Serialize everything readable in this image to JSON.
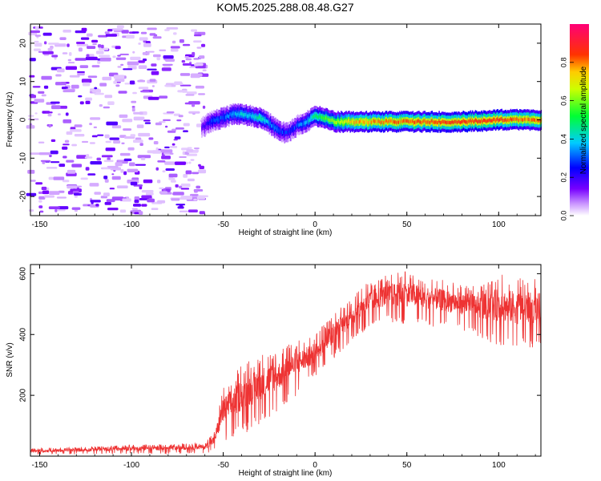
{
  "title": "KOM5.2025.288.08.48.G27",
  "chart_data": [
    {
      "type": "heatmap",
      "name": "spectrogram",
      "xlabel": "Height of straight line (km)",
      "ylabel": "Frequency (Hz)",
      "xlim": [
        -155,
        123
      ],
      "ylim": [
        -25,
        25
      ],
      "xticks": [
        -150,
        -100,
        -50,
        0,
        50,
        100
      ],
      "yticks": [
        -20,
        -10,
        0,
        10,
        20
      ],
      "colorbar": {
        "label": "Normalized spectral amplitude",
        "range": [
          0,
          1
        ],
        "ticks": [
          0.0,
          0.2,
          0.4,
          0.6,
          0.8
        ],
        "tick_labels": [
          "0.0",
          "0.2",
          "0.4",
          "0.6",
          "0.8"
        ],
        "colormap": "rainbow (white-violet-blue-cyan-green-yellow-orange-red-magenta)"
      },
      "noise_region_x": [
        -155,
        -60
      ],
      "noise_amplitude": [
        0.03,
        0.18
      ],
      "signal_trace": {
        "x": [
          -62,
          -55,
          -50,
          -45,
          -40,
          -35,
          -30,
          -25,
          -20,
          -15,
          -10,
          -5,
          0,
          5,
          10,
          20,
          40,
          60,
          80,
          100,
          110,
          123
        ],
        "frequency": [
          -2,
          0,
          0.5,
          1.5,
          1.5,
          1.0,
          0.5,
          -1.0,
          -3.0,
          -3.5,
          -1.5,
          -0.5,
          1.0,
          0.5,
          -0.5,
          -0.5,
          -0.5,
          -0.5,
          -0.5,
          0,
          0,
          0
        ],
        "amplitude": [
          0.15,
          0.3,
          0.3,
          0.35,
          0.4,
          0.4,
          0.45,
          0.35,
          0.3,
          0.25,
          0.3,
          0.35,
          0.5,
          0.55,
          0.6,
          0.75,
          0.8,
          0.82,
          0.85,
          0.85,
          0.8,
          0.8
        ]
      }
    },
    {
      "type": "line",
      "name": "snr",
      "xlabel": "Height of straight line (km)",
      "ylabel": "SNR (v/v)",
      "xlim": [
        -155,
        123
      ],
      "ylim": [
        0,
        630
      ],
      "xticks": [
        -150,
        -100,
        -50,
        0,
        50,
        100
      ],
      "yticks": [
        200,
        400,
        600
      ],
      "color": "#ee3333",
      "x": [
        -155,
        -130,
        -100,
        -80,
        -60,
        -55,
        -50,
        -40,
        -30,
        -20,
        -10,
        0,
        10,
        20,
        30,
        40,
        50,
        60,
        70,
        80,
        90,
        100,
        110,
        123
      ],
      "upper": [
        25,
        30,
        38,
        40,
        45,
        80,
        230,
        300,
        340,
        350,
        380,
        400,
        470,
        520,
        580,
        600,
        610,
        590,
        580,
        570,
        565,
        600,
        590,
        580
      ],
      "lower": [
        5,
        6,
        8,
        8,
        10,
        15,
        40,
        70,
        100,
        150,
        200,
        260,
        320,
        380,
        420,
        440,
        430,
        430,
        420,
        410,
        390,
        360,
        350,
        360
      ]
    }
  ]
}
